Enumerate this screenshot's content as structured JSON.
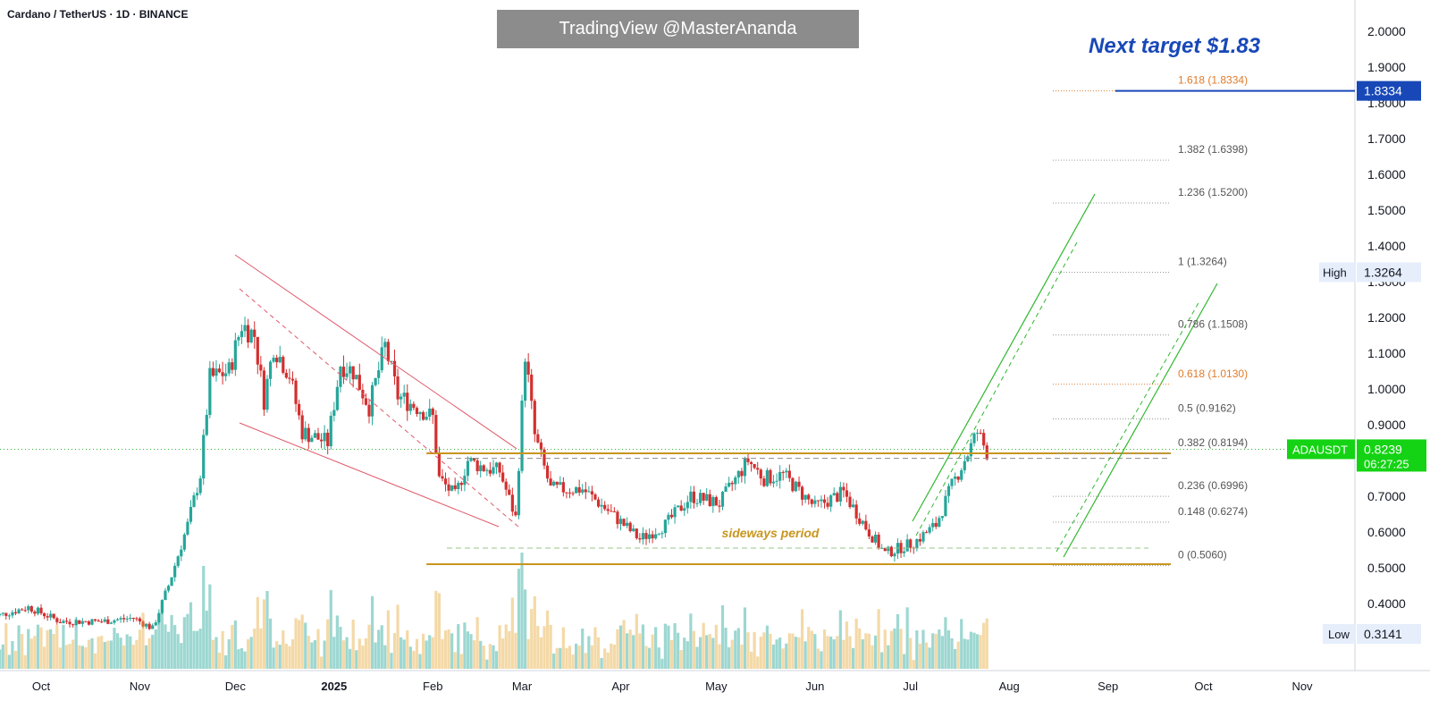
{
  "header": {
    "symbol_line": "Cardano / TetherUS · 1D · BINANCE",
    "watermark": "TradingView @MasterAnanda",
    "target_note": "Next target $1.83"
  },
  "colors": {
    "up": "#26a69a",
    "down": "#d32f2f",
    "support": "#c8961e",
    "channel": "#2eb82e",
    "wedge": "#e05a6a",
    "fib": "#9a9a9a",
    "fib_orange": "#e07b2a",
    "target": "#1848b8"
  },
  "chart_data": {
    "type": "candlestick",
    "symbol": "ADAUSDT",
    "exchange": "BINANCE",
    "interval": "1D",
    "ylim": [
      0.28,
      2.07
    ],
    "y_ticks": [
      "2.0000",
      "1.9000",
      "1.8000",
      "1.7000",
      "1.6000",
      "1.5000",
      "1.4000",
      "1.3000",
      "1.2000",
      "1.1000",
      "1.0000",
      "0.9000",
      "0.8000",
      "0.7000",
      "0.6000",
      "0.5000",
      "0.4000"
    ],
    "x_ticks": [
      {
        "label": "Oct",
        "date": "2024-10-01"
      },
      {
        "label": "Nov",
        "date": "2024-11-01"
      },
      {
        "label": "Dec",
        "date": "2024-12-01"
      },
      {
        "label": "2025",
        "date": "2025-01-01",
        "bold": true
      },
      {
        "label": "Feb",
        "date": "2025-02-01"
      },
      {
        "label": "Mar",
        "date": "2025-03-01"
      },
      {
        "label": "Apr",
        "date": "2025-04-01"
      },
      {
        "label": "May",
        "date": "2025-05-01"
      },
      {
        "label": "Jun",
        "date": "2025-06-01"
      },
      {
        "label": "Jul",
        "date": "2025-07-01"
      },
      {
        "label": "Aug",
        "date": "2025-08-01"
      },
      {
        "label": "Sep",
        "date": "2025-09-01"
      },
      {
        "label": "Oct",
        "date": "2025-10-01"
      },
      {
        "label": "Nov",
        "date": "2025-11-01"
      }
    ],
    "price_path": [
      [
        "2024-09-15",
        0.36
      ],
      [
        "2024-09-27",
        0.39
      ],
      [
        "2024-10-07",
        0.35
      ],
      [
        "2024-10-20",
        0.35
      ],
      [
        "2024-10-30",
        0.36
      ],
      [
        "2024-11-05",
        0.33
      ],
      [
        "2024-11-10",
        0.45
      ],
      [
        "2024-11-16",
        0.62
      ],
      [
        "2024-11-20",
        0.76
      ],
      [
        "2024-11-23",
        1.03
      ],
      [
        "2024-11-29",
        1.05
      ],
      [
        "2024-12-03",
        1.18
      ],
      [
        "2024-12-07",
        1.15
      ],
      [
        "2024-12-10",
        0.97
      ],
      [
        "2024-12-13",
        1.12
      ],
      [
        "2024-12-18",
        1.04
      ],
      [
        "2024-12-22",
        0.88
      ],
      [
        "2024-12-30",
        0.85
      ],
      [
        "2025-01-03",
        1.07
      ],
      [
        "2025-01-07",
        1.05
      ],
      [
        "2025-01-12",
        0.95
      ],
      [
        "2025-01-17",
        1.12
      ],
      [
        "2025-01-21",
        0.98
      ],
      [
        "2025-01-27",
        0.95
      ],
      [
        "2025-02-01",
        0.92
      ],
      [
        "2025-02-03",
        0.75
      ],
      [
        "2025-02-08",
        0.7
      ],
      [
        "2025-02-12",
        0.8
      ],
      [
        "2025-02-17",
        0.78
      ],
      [
        "2025-02-22",
        0.77
      ],
      [
        "2025-02-27",
        0.64
      ],
      [
        "2025-03-02",
        1.1
      ],
      [
        "2025-03-05",
        0.87
      ],
      [
        "2025-03-10",
        0.72
      ],
      [
        "2025-03-20",
        0.72
      ],
      [
        "2025-03-28",
        0.66
      ],
      [
        "2025-04-07",
        0.58
      ],
      [
        "2025-04-15",
        0.62
      ],
      [
        "2025-04-23",
        0.7
      ],
      [
        "2025-05-02",
        0.68
      ],
      [
        "2025-05-11",
        0.8
      ],
      [
        "2025-05-16",
        0.75
      ],
      [
        "2025-05-22",
        0.76
      ],
      [
        "2025-06-01",
        0.67
      ],
      [
        "2025-06-10",
        0.71
      ],
      [
        "2025-06-18",
        0.6
      ],
      [
        "2025-06-23",
        0.54
      ],
      [
        "2025-07-02",
        0.57
      ],
      [
        "2025-07-09",
        0.62
      ],
      [
        "2025-07-14",
        0.73
      ],
      [
        "2025-07-19",
        0.82
      ],
      [
        "2025-07-22",
        0.88
      ],
      [
        "2025-07-25",
        0.8239
      ]
    ],
    "last_price": "0.8239",
    "countdown": "06:27:25",
    "high": {
      "label": "High",
      "value": "1.3264"
    },
    "low": {
      "label": "Low",
      "value": "0.3141"
    },
    "target_price": "1.8334",
    "fib_levels": [
      {
        "ratio": "1.618",
        "price": 1.8334,
        "label": "1.618 (1.8334)",
        "color": "#e07b2a"
      },
      {
        "ratio": "1.382",
        "price": 1.6398,
        "label": "1.382 (1.6398)",
        "color": "#9a9a9a"
      },
      {
        "ratio": "1.236",
        "price": 1.52,
        "label": "1.236 (1.5200)",
        "color": "#9a9a9a"
      },
      {
        "ratio": "1",
        "price": 1.3264,
        "label": "1 (1.3264)",
        "color": "#9a9a9a"
      },
      {
        "ratio": "0.786",
        "price": 1.1508,
        "label": "0.786 (1.1508)",
        "color": "#9a9a9a"
      },
      {
        "ratio": "0.618",
        "price": 1.013,
        "label": "0.618 (1.0130)",
        "color": "#e07b2a"
      },
      {
        "ratio": "0.5",
        "price": 0.9162,
        "label": "0.5 (0.9162)",
        "color": "#9a9a9a"
      },
      {
        "ratio": "0.382",
        "price": 0.8194,
        "label": "0.382 (0.8194)",
        "color": "#9a9a9a"
      },
      {
        "ratio": "0.236",
        "price": 0.6996,
        "label": "0.236 (0.6996)",
        "color": "#9a9a9a"
      },
      {
        "ratio": "0.148",
        "price": 0.6274,
        "label": "0.148 (0.6274)",
        "color": "#9a9a9a"
      },
      {
        "ratio": "0",
        "price": 0.506,
        "label": "0 (0.5060)",
        "color": "#9a9a9a"
      }
    ],
    "annotations": {
      "sideways_label": "sideways period",
      "range_top": 0.82,
      "range_bottom": 0.51,
      "range_start": "2025-01-30",
      "range_end": "2025-08-22"
    },
    "grid": false
  }
}
